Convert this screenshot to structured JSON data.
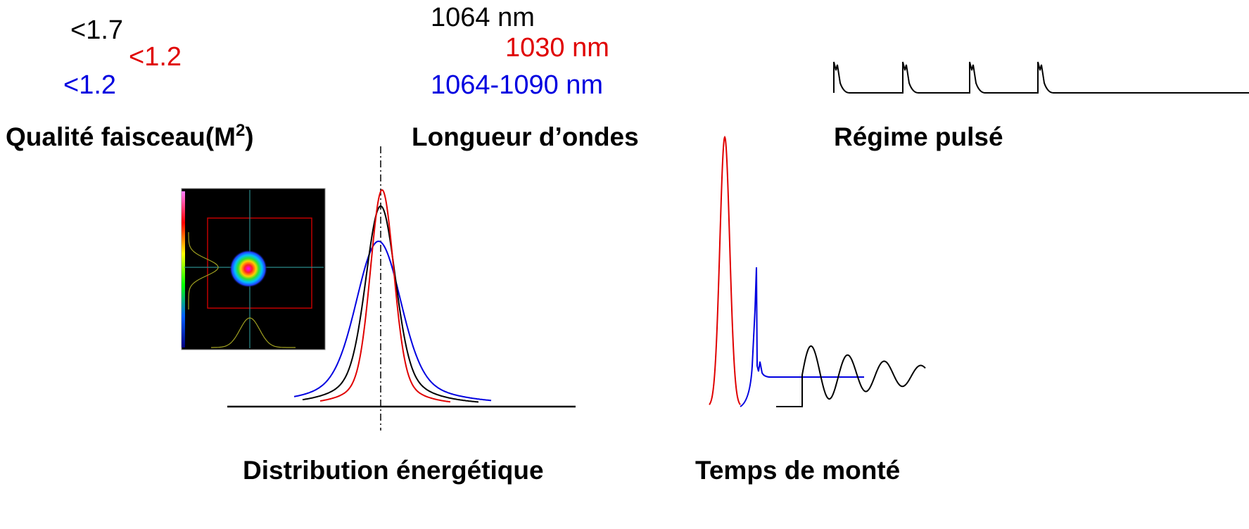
{
  "beam_quality": {
    "values": [
      "<1.7",
      "<1.2",
      "<1.2"
    ],
    "label": "Qualité faisceau(M",
    "label_sup": "2",
    "label_end": ")"
  },
  "wavelength": {
    "values": [
      "1064 nm",
      "1030 nm",
      "1064-1090 nm"
    ],
    "label": "Longueur d’ondes"
  },
  "pulse_mode": {
    "label": "Régime pulsé"
  },
  "energy_distribution": {
    "label": "Distribution énergétique"
  },
  "rise_time": {
    "label": "Temps de monté"
  }
}
